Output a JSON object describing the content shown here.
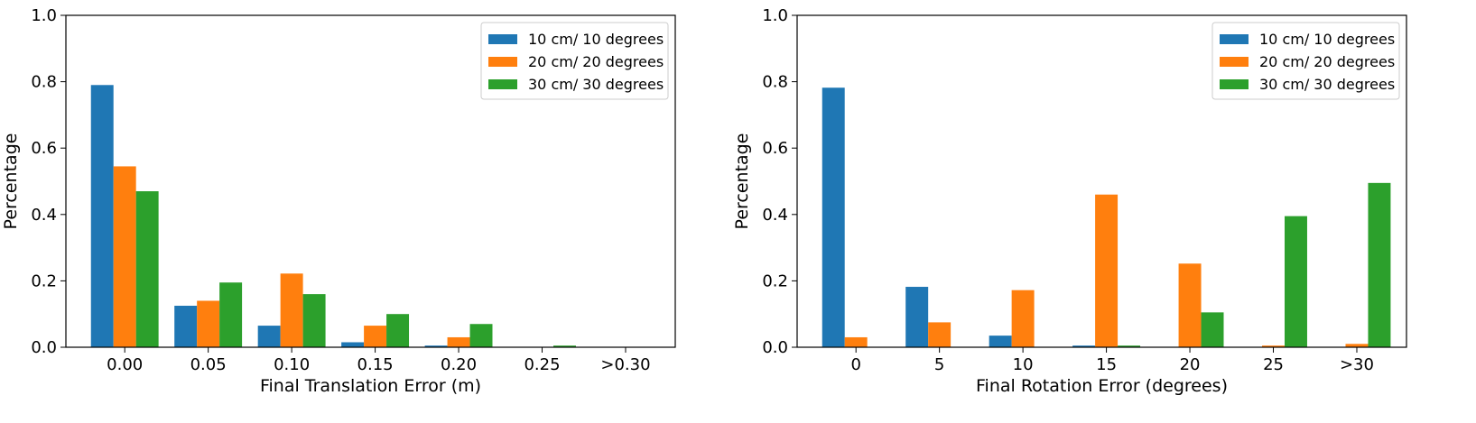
{
  "colors": {
    "series": [
      "#1f77b4",
      "#ff7f0e",
      "#2ca02c"
    ],
    "axis": "#000000",
    "legend_border": "#cccccc"
  },
  "chart_data": [
    {
      "type": "bar",
      "xlabel": "Final Translation Error (m)",
      "ylabel": "Percentage",
      "ylim": [
        0,
        1.0
      ],
      "yticks": [
        "0.0",
        "0.2",
        "0.4",
        "0.6",
        "0.8",
        "1.0"
      ],
      "categories": [
        "0.00",
        "0.05",
        "0.10",
        "0.15",
        "0.20",
        "0.25",
        ">0.30"
      ],
      "series": [
        {
          "name": "10 cm/ 10 degrees",
          "values": [
            0.79,
            0.125,
            0.065,
            0.015,
            0.005,
            0.0,
            0.0
          ]
        },
        {
          "name": "20 cm/ 20 degrees",
          "values": [
            0.545,
            0.14,
            0.222,
            0.065,
            0.03,
            0.0,
            0.0
          ]
        },
        {
          "name": "30 cm/ 30 degrees",
          "values": [
            0.47,
            0.195,
            0.16,
            0.1,
            0.07,
            0.005,
            0.0
          ]
        }
      ],
      "grid": false,
      "legend": "top-right"
    },
    {
      "type": "bar",
      "xlabel": "Final Rotation Error (degrees)",
      "ylabel": "Percentage",
      "ylim": [
        0,
        1.0
      ],
      "yticks": [
        "0.0",
        "0.2",
        "0.4",
        "0.6",
        "0.8",
        "1.0"
      ],
      "categories": [
        "0",
        "5",
        "10",
        "15",
        "20",
        "25",
        ">30"
      ],
      "series": [
        {
          "name": "10 cm/ 10 degrees",
          "values": [
            0.782,
            0.182,
            0.035,
            0.005,
            0.0,
            0.0,
            0.0
          ]
        },
        {
          "name": "20 cm/ 20 degrees",
          "values": [
            0.03,
            0.075,
            0.172,
            0.46,
            0.252,
            0.005,
            0.01
          ]
        },
        {
          "name": "30 cm/ 30 degrees",
          "values": [
            0.0,
            0.0,
            0.0,
            0.005,
            0.105,
            0.395,
            0.495
          ]
        }
      ],
      "grid": false,
      "legend": "top-right"
    }
  ]
}
